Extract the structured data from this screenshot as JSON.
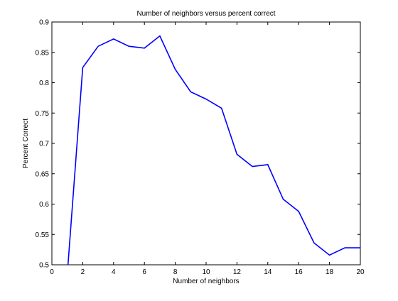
{
  "chart_data": {
    "type": "line",
    "title": "Number of neighbors versus percent correct",
    "xlabel": "Number of neighbors",
    "ylabel": "Percent Correct",
    "xlim": [
      0,
      20
    ],
    "ylim": [
      0.5,
      0.9
    ],
    "xticks": [
      0,
      2,
      4,
      6,
      8,
      10,
      12,
      14,
      16,
      18,
      20
    ],
    "yticks": [
      0.5,
      0.55,
      0.6,
      0.65,
      0.7,
      0.75,
      0.8,
      0.85,
      0.9
    ],
    "ytick_labels": [
      "0.5",
      "0.55",
      "0.6",
      "0.65",
      "0.7",
      "0.75",
      "0.8",
      "0.85",
      "0.9"
    ],
    "grid": false,
    "legend": "none",
    "series": [
      {
        "x": [
          1,
          2,
          3,
          4,
          5,
          6,
          7,
          8,
          9,
          10,
          11,
          12,
          13,
          14,
          15,
          16,
          17,
          18,
          19,
          20
        ],
        "y": [
          0.485,
          0.825,
          0.86,
          0.872,
          0.86,
          0.857,
          0.877,
          0.822,
          0.785,
          0.773,
          0.758,
          0.682,
          0.662,
          0.665,
          0.608,
          0.588,
          0.536,
          0.516,
          0.528,
          0.528
        ],
        "color": "#0000ff"
      }
    ]
  }
}
